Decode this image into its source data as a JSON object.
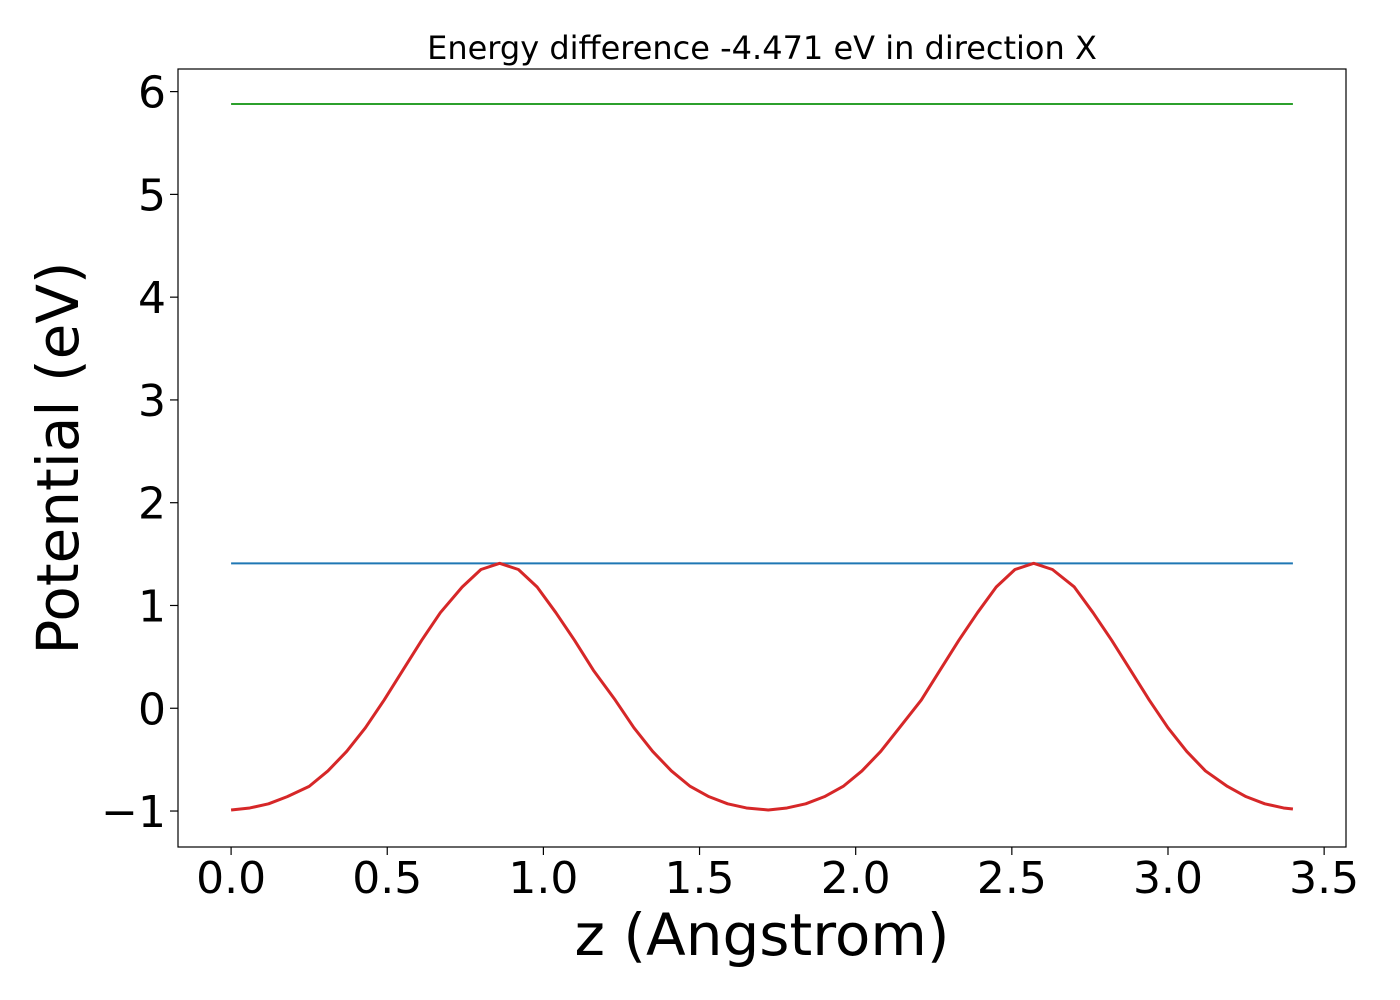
{
  "chart_data": {
    "type": "line",
    "title": "Energy difference -4.471 eV in direction X",
    "xlabel": "z (Angstrom)",
    "ylabel": "Potential (eV)",
    "xlim": [
      -0.17,
      3.57
    ],
    "ylim": [
      -1.35,
      6.22
    ],
    "xticks": [
      0.0,
      0.5,
      1.0,
      1.5,
      2.0,
      2.5,
      3.0,
      3.5
    ],
    "xtick_labels": [
      "0.0",
      "0.5",
      "1.0",
      "1.5",
      "2.0",
      "2.5",
      "3.0",
      "3.5"
    ],
    "yticks": [
      -1,
      0,
      1,
      2,
      3,
      4,
      5,
      6
    ],
    "ytick_labels": [
      "−1",
      "0",
      "1",
      "2",
      "3",
      "4",
      "5",
      "6"
    ],
    "grid": false,
    "series": [
      {
        "color": "#2ca02c",
        "x": [
          0.0,
          3.4
        ],
        "y": [
          5.88,
          5.88
        ]
      },
      {
        "color": "#1f77b4",
        "x": [
          0.0,
          3.4
        ],
        "y": [
          1.41,
          1.41
        ]
      },
      {
        "color": "#d62728",
        "x": [
          0.0,
          0.06,
          0.12,
          0.18,
          0.25,
          0.31,
          0.37,
          0.43,
          0.49,
          0.55,
          0.61,
          0.67,
          0.74,
          0.8,
          0.86,
          0.92,
          0.98,
          1.04,
          1.1,
          1.16,
          1.23,
          1.29,
          1.35,
          1.41,
          1.47,
          1.53,
          1.59,
          1.65,
          1.72,
          1.78,
          1.84,
          1.9,
          1.96,
          2.02,
          2.08,
          2.14,
          2.21,
          2.27,
          2.33,
          2.39,
          2.45,
          2.51,
          2.57,
          2.63,
          2.7,
          2.76,
          2.82,
          2.88,
          2.94,
          3.0,
          3.06,
          3.12,
          3.19,
          3.25,
          3.31,
          3.37,
          3.4
        ],
        "y": [
          -0.99,
          -0.97,
          -0.93,
          -0.86,
          -0.76,
          -0.61,
          -0.42,
          -0.19,
          0.08,
          0.37,
          0.66,
          0.93,
          1.18,
          1.35,
          1.41,
          1.35,
          1.18,
          0.93,
          0.66,
          0.37,
          0.08,
          -0.19,
          -0.42,
          -0.61,
          -0.76,
          -0.86,
          -0.93,
          -0.97,
          -0.99,
          -0.97,
          -0.93,
          -0.86,
          -0.76,
          -0.61,
          -0.42,
          -0.19,
          0.08,
          0.37,
          0.66,
          0.93,
          1.18,
          1.35,
          1.41,
          1.35,
          1.18,
          0.93,
          0.66,
          0.37,
          0.08,
          -0.19,
          -0.42,
          -0.61,
          -0.76,
          -0.86,
          -0.93,
          -0.97,
          -0.98
        ]
      }
    ]
  }
}
